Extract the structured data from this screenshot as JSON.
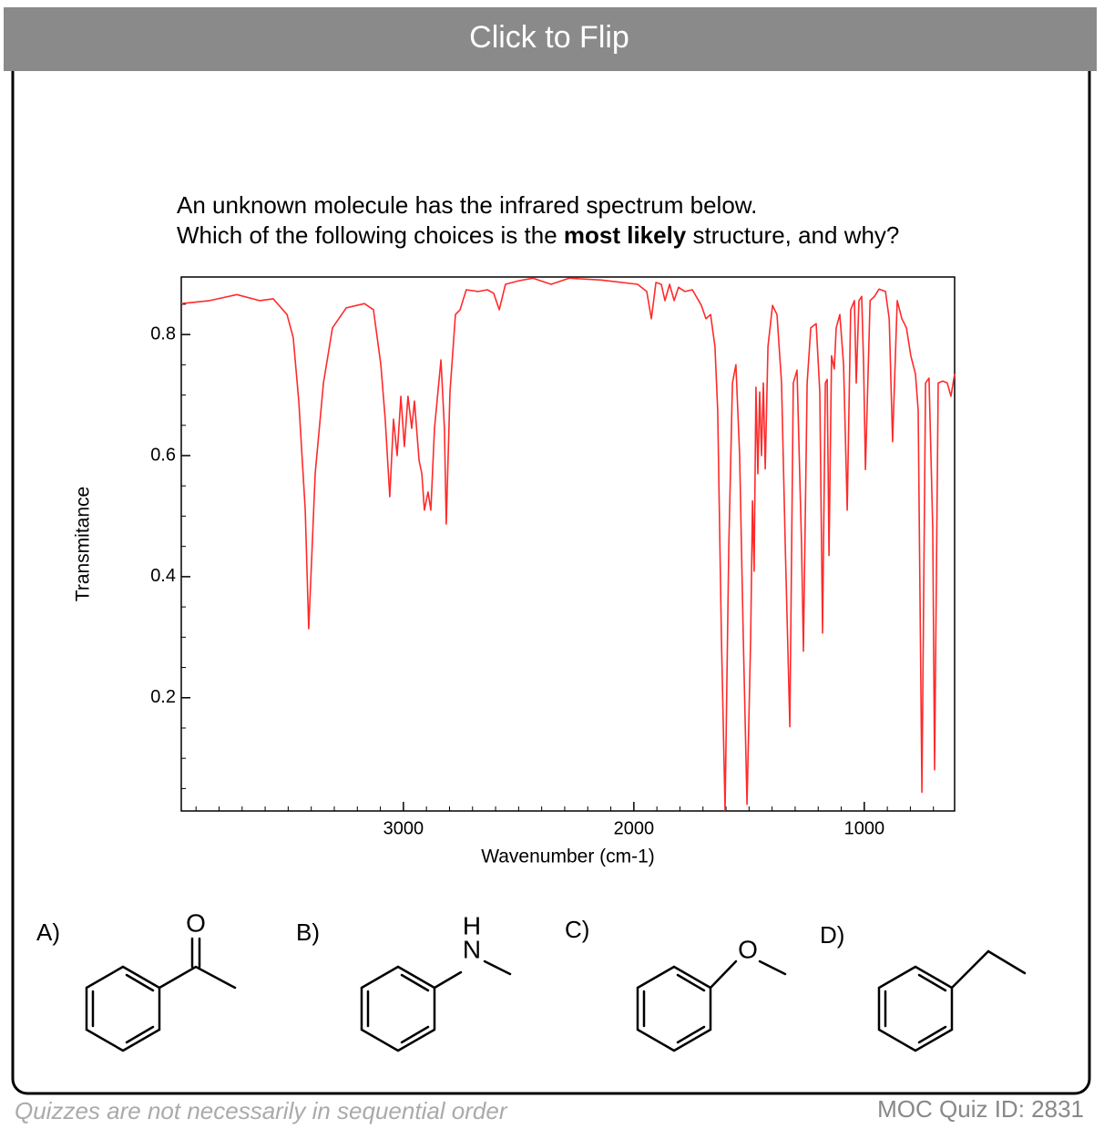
{
  "header": {
    "button": "Click to Flip"
  },
  "question": {
    "line1": "An unknown molecule has the infrared spectrum below.",
    "line2_start": "Which of the following choices is the ",
    "line2_bold": "most likely",
    "line2_end": " structure, and why?"
  },
  "chart_data": {
    "type": "line",
    "x_label": "Wavenumber (cm-1)",
    "y_label": "Transmitance",
    "color": "#ff2a2a",
    "xlim": [
      3964,
      608
    ],
    "ylim": [
      0.013,
      0.895
    ],
    "xticks": [
      3000,
      2000,
      1000
    ],
    "yticks": [
      0.8,
      0.6,
      0.4,
      0.2
    ],
    "xminorticks": [
      3900,
      3800,
      3700,
      3600,
      3500,
      3400,
      3300,
      3200,
      3100,
      2900,
      2800,
      2700,
      2600,
      2500,
      2400,
      2300,
      2200,
      2100,
      1900,
      1800,
      1700,
      1600,
      1500,
      1400,
      1300,
      1200,
      1100,
      900,
      800,
      700
    ],
    "yminorticks": [
      0.05,
      0.1,
      0.15,
      0.25,
      0.3,
      0.35,
      0.45,
      0.5,
      0.55,
      0.65,
      0.7,
      0.75,
      0.85
    ],
    "x": [
      3964,
      3841,
      3723,
      3624,
      3565,
      3505,
      3478,
      3454,
      3426,
      3411,
      3399,
      3383,
      3347,
      3308,
      3248,
      3169,
      3130,
      3098,
      3079,
      3059,
      3043,
      3027,
      3011,
      2996,
      2980,
      2964,
      2952,
      2932,
      2920,
      2909,
      2893,
      2881,
      2865,
      2837,
      2822,
      2814,
      2798,
      2774,
      2754,
      2727,
      2675,
      2636,
      2608,
      2584,
      2557,
      2497,
      2438,
      2359,
      2280,
      2142,
      1984,
      1944,
      1924,
      1904,
      1881,
      1865,
      1845,
      1825,
      1806,
      1778,
      1746,
      1707,
      1687,
      1667,
      1648,
      1636,
      1620,
      1604,
      1588,
      1572,
      1557,
      1541,
      1525,
      1509,
      1493,
      1485,
      1478,
      1470,
      1462,
      1454,
      1446,
      1438,
      1430,
      1418,
      1398,
      1379,
      1359,
      1343,
      1323,
      1308,
      1292,
      1272,
      1264,
      1248,
      1232,
      1209,
      1193,
      1181,
      1169,
      1161,
      1153,
      1142,
      1130,
      1122,
      1106,
      1090,
      1074,
      1059,
      1043,
      1035,
      1023,
      1011,
      1003,
      995,
      975,
      956,
      936,
      908,
      892,
      877,
      857,
      837,
      817,
      798,
      778,
      766,
      750,
      734,
      719,
      703,
      695,
      679,
      659,
      640,
      624,
      608
    ],
    "values": [
      0.851,
      0.856,
      0.866,
      0.856,
      0.859,
      0.833,
      0.795,
      0.69,
      0.51,
      0.314,
      0.42,
      0.57,
      0.72,
      0.811,
      0.844,
      0.851,
      0.841,
      0.75,
      0.66,
      0.532,
      0.66,
      0.6,
      0.698,
      0.615,
      0.698,
      0.645,
      0.69,
      0.592,
      0.57,
      0.51,
      0.54,
      0.51,
      0.645,
      0.758,
      0.645,
      0.487,
      0.705,
      0.833,
      0.841,
      0.874,
      0.871,
      0.874,
      0.868,
      0.841,
      0.883,
      0.889,
      0.893,
      0.883,
      0.893,
      0.89,
      0.883,
      0.871,
      0.826,
      0.886,
      0.883,
      0.856,
      0.883,
      0.856,
      0.878,
      0.871,
      0.874,
      0.848,
      0.826,
      0.833,
      0.78,
      0.675,
      0.299,
      0.014,
      0.45,
      0.72,
      0.75,
      0.6,
      0.299,
      0.024,
      0.299,
      0.525,
      0.409,
      0.713,
      0.57,
      0.705,
      0.6,
      0.72,
      0.578,
      0.78,
      0.848,
      0.833,
      0.72,
      0.45,
      0.152,
      0.72,
      0.741,
      0.45,
      0.277,
      0.72,
      0.811,
      0.818,
      0.705,
      0.307,
      0.72,
      0.726,
      0.435,
      0.765,
      0.743,
      0.811,
      0.833,
      0.75,
      0.51,
      0.841,
      0.856,
      0.72,
      0.856,
      0.863,
      0.75,
      0.577,
      0.856,
      0.863,
      0.875,
      0.871,
      0.826,
      0.623,
      0.856,
      0.826,
      0.811,
      0.765,
      0.735,
      0.675,
      0.044,
      0.72,
      0.728,
      0.48,
      0.081,
      0.72,
      0.723,
      0.72,
      0.698,
      0.735
    ]
  },
  "choices": [
    {
      "label": "A)",
      "atoms": [
        "O"
      ]
    },
    {
      "label": "B)",
      "atoms": [
        "H",
        "N"
      ]
    },
    {
      "label": "C)",
      "atoms": [
        "O"
      ]
    },
    {
      "label": "D)",
      "atoms": []
    }
  ],
  "footer": {
    "note": "Quizzes are not necessarily in sequential order",
    "quiz_id": "MOC Quiz ID: 2831"
  }
}
